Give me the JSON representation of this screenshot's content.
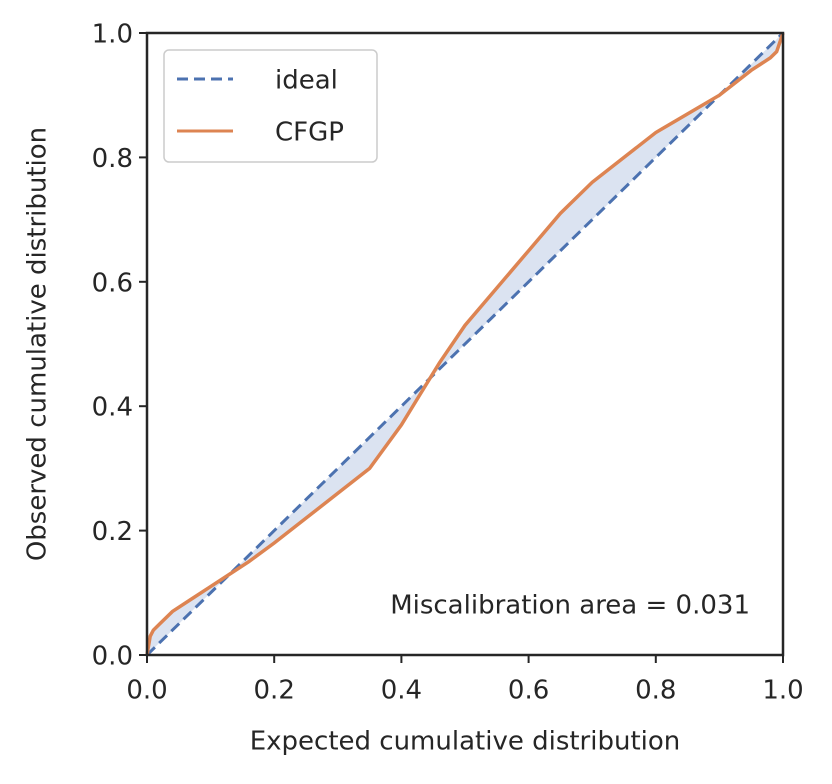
{
  "chart_data": {
    "type": "line",
    "xlabel": "Expected cumulative distribution",
    "ylabel": "Observed cumulative distribution",
    "annotation": "Miscalibration area = 0.031",
    "xlim": [
      0,
      1
    ],
    "ylim": [
      0,
      1
    ],
    "xticks": [
      {
        "value": 0,
        "label": "0.0"
      },
      0.2,
      0.4,
      0.6,
      0.8,
      {
        "value": 1,
        "label": "1.0"
      }
    ],
    "yticks": [
      {
        "value": 0,
        "label": "0.0"
      },
      0.2,
      0.4,
      0.6,
      0.8,
      {
        "value": 1,
        "label": "1.0"
      }
    ],
    "legend": "upper left",
    "fill_color": "#dbe3f1",
    "series": [
      {
        "name": "ideal",
        "color": "#4c72b0",
        "dash": true,
        "x": [
          0,
          1
        ],
        "values": [
          0,
          1
        ]
      },
      {
        "name": "CFGP",
        "color": "#dd8452",
        "dash": false,
        "x": [
          0,
          0.005,
          0.01,
          0.02,
          0.04,
          0.07,
          0.1,
          0.13,
          0.16,
          0.2,
          0.25,
          0.3,
          0.35,
          0.4,
          0.43,
          0.46,
          0.5,
          0.55,
          0.6,
          0.65,
          0.7,
          0.75,
          0.8,
          0.85,
          0.9,
          0.95,
          0.98,
          0.99,
          1.0
        ],
        "values": [
          0,
          0.03,
          0.04,
          0.05,
          0.07,
          0.09,
          0.11,
          0.13,
          0.15,
          0.18,
          0.22,
          0.26,
          0.3,
          0.37,
          0.42,
          0.47,
          0.53,
          0.59,
          0.65,
          0.71,
          0.76,
          0.8,
          0.84,
          0.87,
          0.9,
          0.94,
          0.96,
          0.97,
          1.0
        ]
      }
    ]
  }
}
